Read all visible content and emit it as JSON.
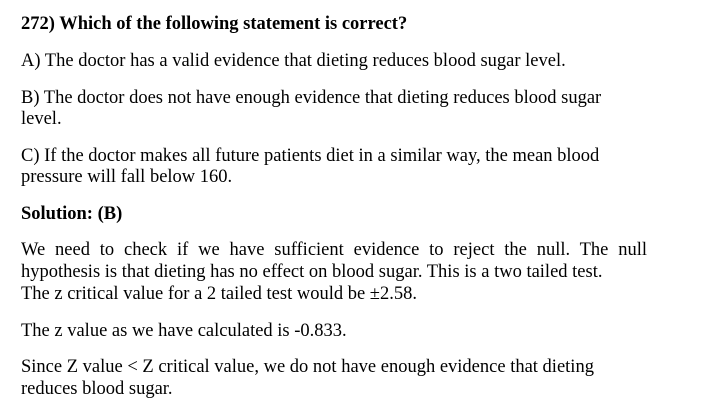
{
  "question": {
    "title": "272) Which of the following statement is correct?",
    "options": [
      {
        "line1": "A) The doctor has a valid evidence that dieting reduces blood sugar level."
      },
      {
        "line1": "B) The doctor does not have enough evidence that dieting reduces blood sugar",
        "line2": "level."
      },
      {
        "line1": "C) If the doctor makes all future patients diet in a similar way, the mean blood",
        "line2": "pressure will fall below 160."
      }
    ]
  },
  "solution": {
    "heading": "Solution: (B)",
    "paragraph1": {
      "line1": "We need to check if we have sufficient evidence to reject the null. The null",
      "line2": "hypothesis is that dieting has no effect on blood sugar. This is a two tailed test.",
      "line3": "The z critical value for a 2 tailed test would be ±2.58."
    },
    "paragraph2": "The z value as we have calculated is -0.833.",
    "paragraph3": {
      "line1": "Since Z value < Z critical value, we do not have enough evidence that dieting",
      "line2": "reduces blood sugar."
    }
  }
}
